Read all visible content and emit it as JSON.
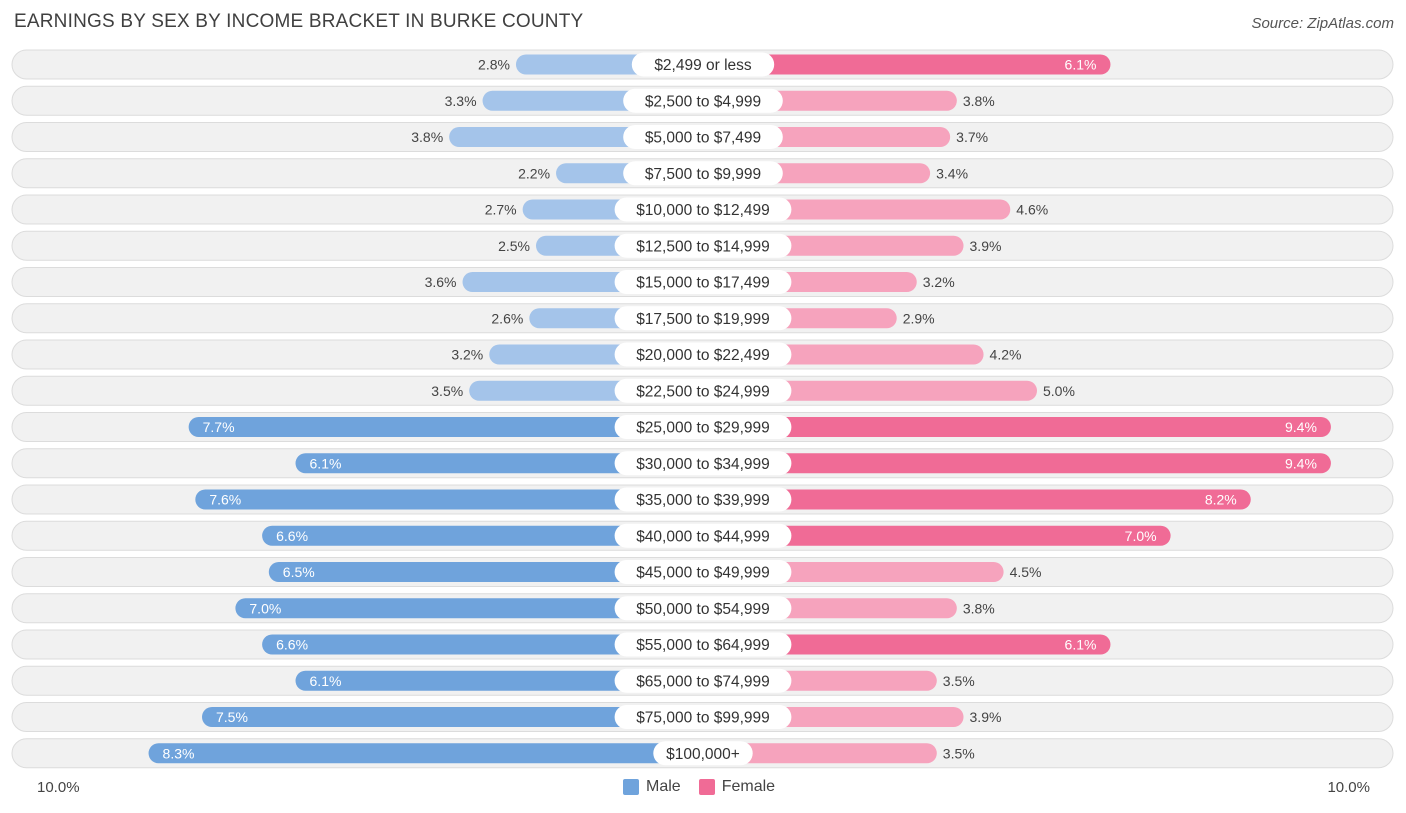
{
  "title": "EARNINGS BY SEX BY INCOME BRACKET IN BURKE COUNTY",
  "source": "Source: ZipAtlas.com",
  "colors": {
    "male_light": "#a4c4ea",
    "male_dark": "#6fa3dc",
    "female_light": "#f6a3bd",
    "female_dark": "#f06b96",
    "row_bg": "#f1f1f1",
    "row_border": "#dcdcdc"
  },
  "chart_data": {
    "type": "bar",
    "orientation": "horizontal-diverging",
    "title": "EARNINGS BY SEX BY INCOME BRACKET IN BURKE COUNTY",
    "categories": [
      "$2,499 or less",
      "$2,500 to $4,999",
      "$5,000 to $7,499",
      "$7,500 to $9,999",
      "$10,000 to $12,499",
      "$12,500 to $14,999",
      "$15,000 to $17,499",
      "$17,500 to $19,999",
      "$20,000 to $22,499",
      "$22,500 to $24,999",
      "$25,000 to $29,999",
      "$30,000 to $34,999",
      "$35,000 to $39,999",
      "$40,000 to $44,999",
      "$45,000 to $49,999",
      "$50,000 to $54,999",
      "$55,000 to $64,999",
      "$65,000 to $74,999",
      "$75,000 to $99,999",
      "$100,000+"
    ],
    "series": [
      {
        "name": "Male",
        "values": [
          2.8,
          3.3,
          3.8,
          2.2,
          2.7,
          2.5,
          3.6,
          2.6,
          3.2,
          3.5,
          7.7,
          6.1,
          7.6,
          6.6,
          6.5,
          7.0,
          6.6,
          6.1,
          7.5,
          8.3
        ],
        "labels": [
          "2.8%",
          "3.3%",
          "3.8%",
          "2.2%",
          "2.7%",
          "2.5%",
          "3.6%",
          "2.6%",
          "3.2%",
          "3.5%",
          "7.7%",
          "6.1%",
          "7.6%",
          "6.6%",
          "6.5%",
          "7.0%",
          "6.6%",
          "6.1%",
          "7.5%",
          "8.3%"
        ]
      },
      {
        "name": "Female",
        "values": [
          6.1,
          3.8,
          3.7,
          3.4,
          4.6,
          3.9,
          3.2,
          2.9,
          4.2,
          5.0,
          9.4,
          9.4,
          8.2,
          7.0,
          4.5,
          3.8,
          6.1,
          3.5,
          3.9,
          3.5
        ],
        "labels": [
          "6.1%",
          "3.8%",
          "3.7%",
          "3.4%",
          "4.6%",
          "3.9%",
          "3.2%",
          "2.9%",
          "4.2%",
          "5.0%",
          "9.4%",
          "9.4%",
          "8.2%",
          "7.0%",
          "4.5%",
          "3.8%",
          "6.1%",
          "3.5%",
          "3.9%",
          "3.5%"
        ]
      }
    ],
    "xlim": [
      0,
      10
    ],
    "axis_min_label": "10.0%",
    "axis_max_label": "10.0%",
    "legend": [
      "Male",
      "Female"
    ],
    "legend_position": "bottom-center"
  }
}
